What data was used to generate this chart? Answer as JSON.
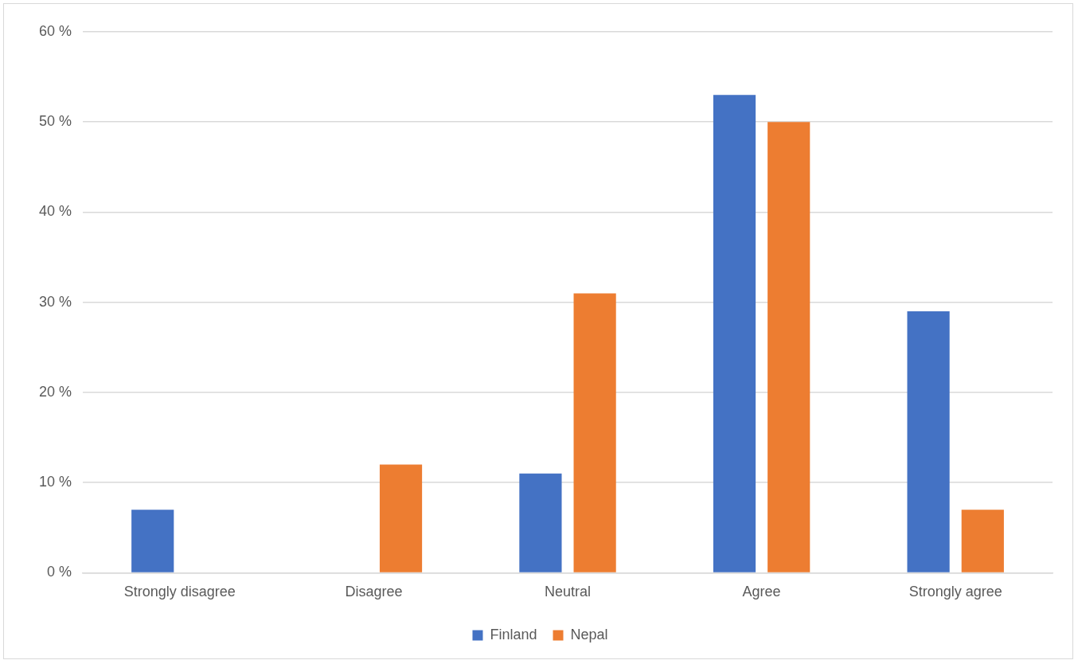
{
  "chart_data": {
    "type": "bar",
    "categories": [
      "Strongly disagree",
      "Disagree",
      "Neutral",
      "Agree",
      "Strongly agree"
    ],
    "series": [
      {
        "name": "Finland",
        "color": "#4472c4",
        "values": [
          7,
          0,
          11,
          53,
          29
        ]
      },
      {
        "name": "Nepal",
        "color": "#ed7d31",
        "values": [
          0,
          12,
          31,
          50,
          7
        ]
      }
    ],
    "ylim": [
      0,
      60
    ],
    "yticks": [
      {
        "value": 0,
        "label": "0 %"
      },
      {
        "value": 10,
        "label": "10 %"
      },
      {
        "value": 20,
        "label": "20 %"
      },
      {
        "value": 30,
        "label": "30 %"
      },
      {
        "value": 40,
        "label": "40 %"
      },
      {
        "value": 50,
        "label": "50 %"
      },
      {
        "value": 60,
        "label": "60 %"
      }
    ],
    "grid": "y",
    "legend": "bottom"
  }
}
